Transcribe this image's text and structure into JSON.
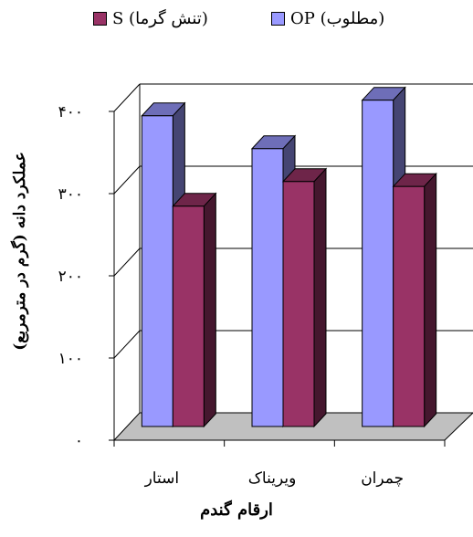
{
  "chart_data": {
    "type": "bar",
    "categories": [
      "استار",
      "ویریناک",
      "چمران"
    ],
    "series": [
      {
        "name": "OP (مطلوب)",
        "values": [
          378,
          338,
          397
        ],
        "color": "#9999FF"
      },
      {
        "name": "S (تنش گرما)",
        "values": [
          268,
          298,
          292
        ],
        "color": "#993366"
      }
    ],
    "yticks": [
      "۰",
      "۱۰۰",
      "۲۰۰",
      "۳۰۰",
      "۴۰۰"
    ],
    "ylim": [
      0,
      400
    ],
    "ylabel": "عملکرد دانه (گرم در مترمربع)",
    "xlabel": "ارقام گندم",
    "grid": true,
    "legend_position": "top"
  }
}
